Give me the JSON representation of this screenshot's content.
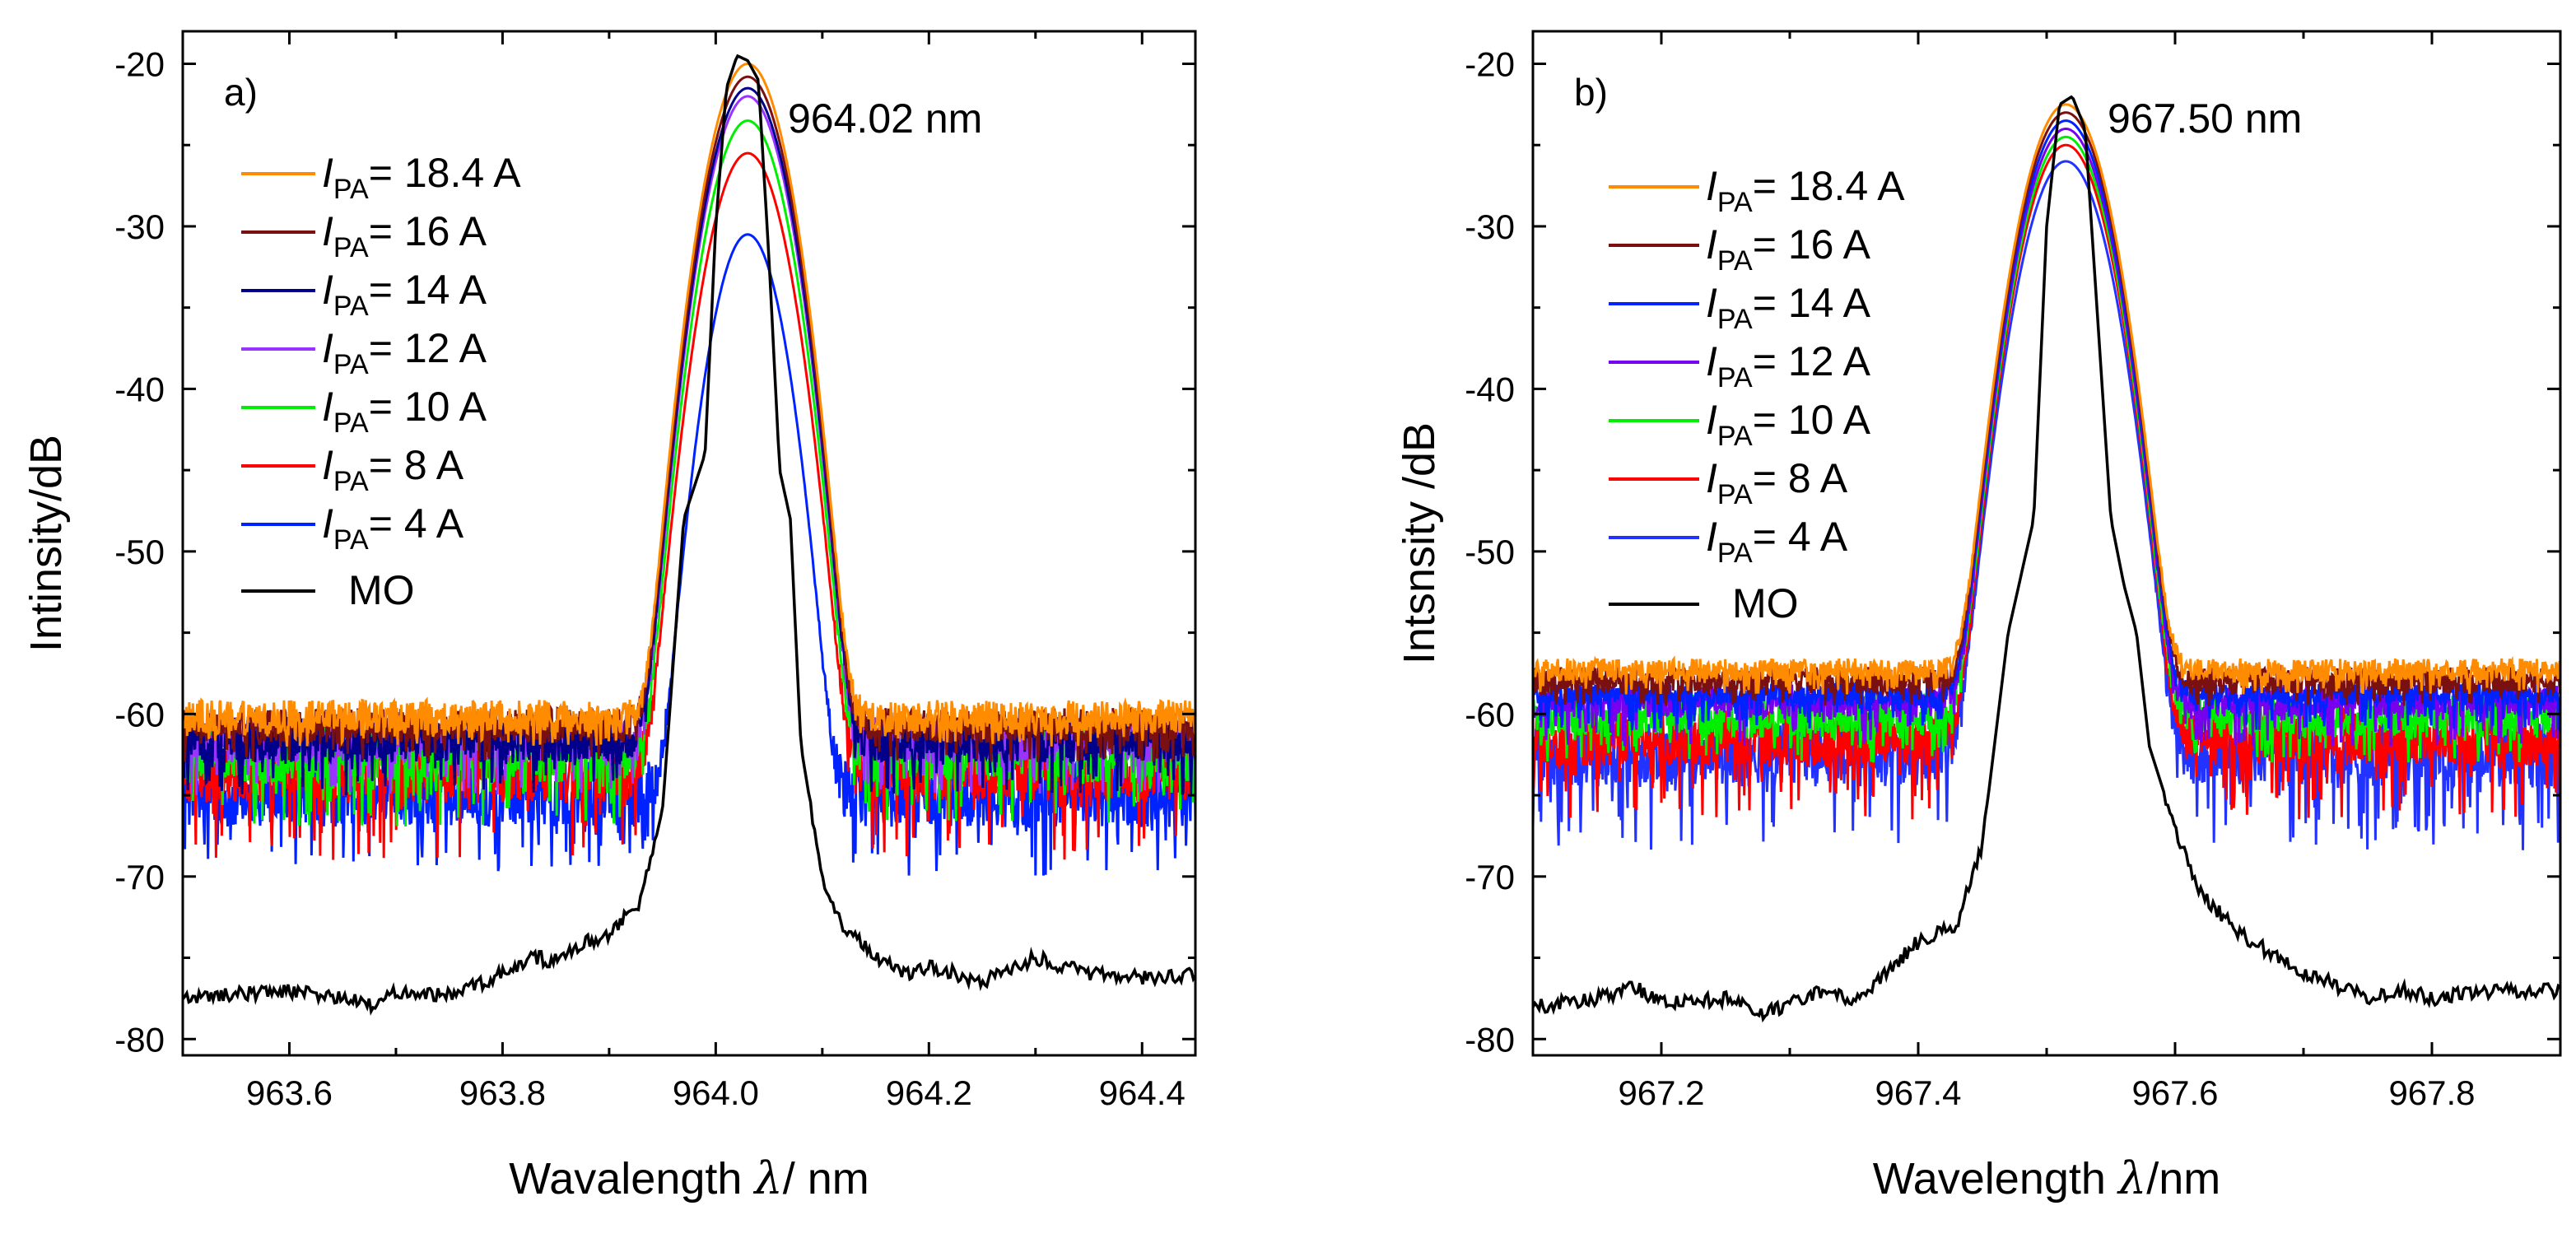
{
  "chart_data": [
    {
      "type": "line",
      "panel_label": "a)",
      "peak_annotation": "964.02 nm",
      "xlabel_main": "Wavalength ",
      "xlabel_symbol": "λ",
      "xlabel_unit": "/ nm",
      "ylabel": "Intinsity/dB",
      "xlim": [
        963.5,
        964.45
      ],
      "ylim": [
        -81,
        -18
      ],
      "xticks": [
        963.6,
        963.8,
        964.0,
        964.2,
        964.4
      ],
      "xtick_labels": [
        "963.6",
        "963.8",
        "964.0",
        "964.2",
        "964.4"
      ],
      "yticks": [
        -80,
        -70,
        -60,
        -50,
        -40,
        -30,
        -20
      ],
      "ytick_labels": [
        "-80",
        "-70",
        "-60",
        "-50",
        "-40",
        "-30",
        "-20"
      ],
      "peak_center": 964.03,
      "legend_position": "upper-left",
      "series": [
        {
          "name": "18.4 A",
          "color": "#ff8c00",
          "peak": -20.0,
          "floor_mean": -60.5,
          "floor_low": -62.0,
          "floor_high": -59.0,
          "width": 0.022
        },
        {
          "name": "16 A",
          "color": "#7b1010",
          "peak": -20.8,
          "floor_mean": -61.0,
          "floor_low": -63.0,
          "floor_high": -59.5,
          "width": 0.022
        },
        {
          "name": "14 A",
          "color": "#00008b",
          "peak": -21.5,
          "floor_mean": -62.0,
          "floor_low": -65.0,
          "floor_high": -60.0,
          "width": 0.022
        },
        {
          "name": "12 A",
          "color": "#9933ff",
          "peak": -22.0,
          "floor_mean": -62.0,
          "floor_low": -65.0,
          "floor_high": -60.0,
          "width": 0.022
        },
        {
          "name": "10 A",
          "color": "#00ee00",
          "peak": -23.5,
          "floor_mean": -63.0,
          "floor_low": -67.0,
          "floor_high": -60.5,
          "width": 0.022
        },
        {
          "name": "8 A",
          "color": "#ff0000",
          "peak": -25.5,
          "floor_mean": -64.0,
          "floor_low": -69.0,
          "floor_high": -61.0,
          "width": 0.022
        },
        {
          "name": "4 A",
          "color": "#0022ff",
          "peak": -30.5,
          "floor_mean": -65.5,
          "floor_low": -70.0,
          "floor_high": -62.5,
          "width": 0.02
        }
      ],
      "mo": {
        "name": "MO",
        "color": "#000000",
        "x": [
          963.5,
          963.55,
          963.6,
          963.65,
          963.68,
          963.7,
          963.75,
          963.8,
          963.83,
          963.85,
          963.88,
          963.9,
          963.93,
          963.95,
          963.97,
          963.99,
          964.0,
          964.01,
          964.02,
          964.03,
          964.04,
          964.05,
          964.06,
          964.07,
          964.08,
          964.1,
          964.12,
          964.15,
          964.18,
          964.2,
          964.25,
          964.3,
          964.35,
          964.4,
          964.45
        ],
        "y": [
          -77.5,
          -77.2,
          -77.0,
          -77.5,
          -78.0,
          -77.0,
          -77.3,
          -76.0,
          -75.0,
          -75.2,
          -74.0,
          -73.5,
          -71.5,
          -66.0,
          -48.0,
          -44.0,
          -30.0,
          -21.5,
          -19.5,
          -19.8,
          -21.0,
          -32.0,
          -45.0,
          -48.0,
          -62.0,
          -70.0,
          -73.0,
          -75.0,
          -76.0,
          -75.5,
          -76.5,
          -75.0,
          -76.0,
          -76.2,
          -76.0
        ]
      }
    },
    {
      "type": "line",
      "panel_label": "b)",
      "peak_annotation": "967.50 nm",
      "xlabel_main": "Wavelength ",
      "xlabel_symbol": "λ",
      "xlabel_unit": "/nm",
      "ylabel": "Intsnsity /dB",
      "xlim": [
        967.1,
        967.9
      ],
      "ylim": [
        -81,
        -18
      ],
      "xticks": [
        967.2,
        967.4,
        967.6,
        967.8
      ],
      "xtick_labels": [
        "967.2",
        "967.4",
        "967.6",
        "967.8"
      ],
      "yticks": [
        -80,
        -70,
        -60,
        -50,
        -40,
        -30,
        -20
      ],
      "ytick_labels": [
        "-80",
        "-70",
        "-60",
        "-50",
        "-40",
        "-30",
        "-20"
      ],
      "peak_center": 967.515,
      "legend_position": "upper-left",
      "series": [
        {
          "name": "18.4 A",
          "color": "#ff8c00",
          "peak": -22.5,
          "floor_mean": -57.5,
          "floor_low": -58.8,
          "floor_high": -56.5,
          "width": 0.02
        },
        {
          "name": "16 A",
          "color": "#7b1010",
          "peak": -23.0,
          "floor_mean": -58.2,
          "floor_low": -59.5,
          "floor_high": -57.0,
          "width": 0.02
        },
        {
          "name": "14 A",
          "color": "#0022ff",
          "peak": -23.5,
          "floor_mean": -59.0,
          "floor_low": -61.0,
          "floor_high": -58.0,
          "width": 0.02
        },
        {
          "name": "12 A",
          "color": "#7700ee",
          "peak": -24.0,
          "floor_mean": -59.5,
          "floor_low": -62.0,
          "floor_high": -58.0,
          "width": 0.02
        },
        {
          "name": "10 A",
          "color": "#00ee00",
          "peak": -24.5,
          "floor_mean": -60.5,
          "floor_low": -63.0,
          "floor_high": -58.5,
          "width": 0.02
        },
        {
          "name": "8 A",
          "color": "#ff0000",
          "peak": -25.0,
          "floor_mean": -62.0,
          "floor_low": -66.5,
          "floor_high": -59.5,
          "width": 0.02
        },
        {
          "name": "4 A",
          "color": "#2233ff",
          "peak": -26.0,
          "floor_mean": -63.0,
          "floor_low": -68.5,
          "floor_high": -60.0,
          "width": 0.02
        }
      ],
      "mo": {
        "name": "MO",
        "color": "#000000",
        "x": [
          967.1,
          967.15,
          967.18,
          967.2,
          967.25,
          967.28,
          967.3,
          967.33,
          967.35,
          967.38,
          967.4,
          967.43,
          967.45,
          967.47,
          967.49,
          967.5,
          967.51,
          967.52,
          967.53,
          967.54,
          967.55,
          967.56,
          967.57,
          967.58,
          967.6,
          967.62,
          967.65,
          967.7,
          967.72,
          967.75,
          967.78,
          967.8,
          967.85,
          967.9
        ],
        "y": [
          -78.0,
          -77.5,
          -76.8,
          -77.8,
          -77.5,
          -78.5,
          -77.8,
          -77.0,
          -77.8,
          -75.5,
          -74.0,
          -73.0,
          -68.0,
          -55.0,
          -48.0,
          -30.0,
          -22.5,
          -22.0,
          -24.0,
          -36.0,
          -48.0,
          -52.0,
          -55.0,
          -62.0,
          -67.0,
          -71.0,
          -73.5,
          -76.0,
          -76.5,
          -77.5,
          -77.0,
          -77.5,
          -77.0,
          -77.0
        ]
      }
    }
  ]
}
